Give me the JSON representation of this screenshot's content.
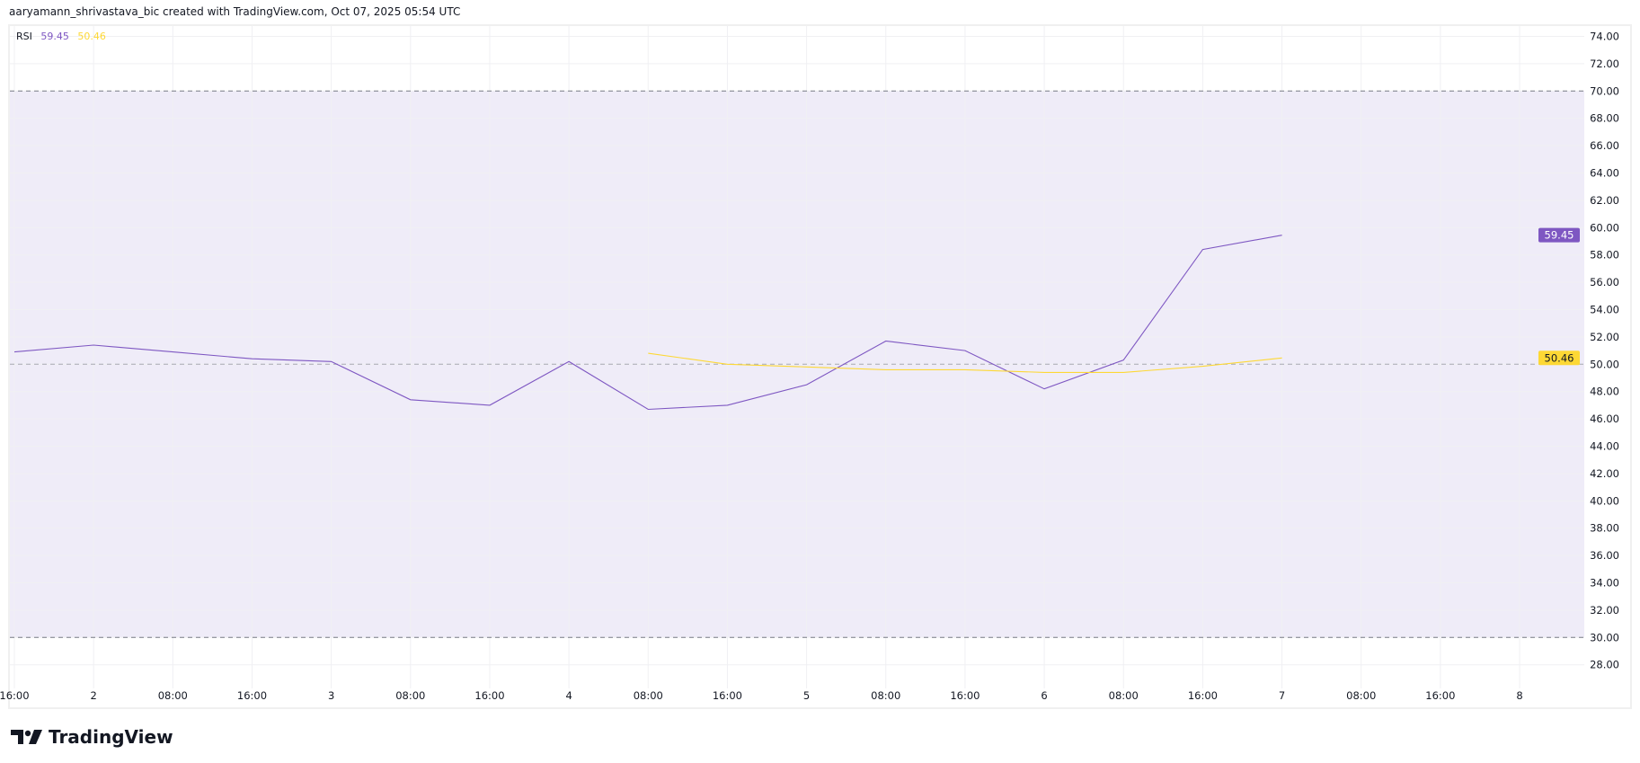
{
  "caption": "aaryamann_shrivastava_bic created with TradingView.com, Oct 07, 2025 05:54 UTC",
  "legend": {
    "name": "RSI",
    "rsi_value": "59.45",
    "ma_value": "50.46"
  },
  "brand": "TradingView",
  "colors": {
    "rsi": "#7e57c2",
    "ma": "#fdd835",
    "band_fill": "#efecf8",
    "grid": "#f0f0f3",
    "dashed": "#787b86"
  },
  "chart_data": {
    "type": "line",
    "x_tick_labels": [
      "16:00",
      "2",
      "08:00",
      "16:00",
      "3",
      "08:00",
      "16:00",
      "4",
      "08:00",
      "16:00",
      "5",
      "08:00",
      "16:00",
      "6",
      "08:00",
      "16:00",
      "7",
      "08:00",
      "16:00",
      "8"
    ],
    "ylim": [
      27,
      75
    ],
    "y_ticks": [
      28,
      30,
      32,
      34,
      36,
      38,
      40,
      42,
      44,
      46,
      48,
      50,
      52,
      54,
      56,
      58,
      60,
      62,
      64,
      66,
      68,
      70,
      72,
      74
    ],
    "bands": {
      "upper": 70,
      "middle": 50,
      "lower": 30
    },
    "grid": true,
    "series": [
      {
        "name": "RSI",
        "color": "#7e57c2",
        "values": [
          50.9,
          51.4,
          50.9,
          50.4,
          50.2,
          47.4,
          47.0,
          50.2,
          46.7,
          47.0,
          48.5,
          51.7,
          51.0,
          48.2,
          50.3,
          58.4,
          59.45
        ]
      },
      {
        "color": "#fdd835",
        "values": [
          null,
          null,
          null,
          null,
          null,
          null,
          null,
          null,
          50.8,
          50.0,
          49.8,
          49.6,
          49.6,
          49.4,
          49.4,
          49.85,
          50.46
        ]
      }
    ],
    "last_value_labels": [
      "59.45",
      "50.46"
    ]
  }
}
